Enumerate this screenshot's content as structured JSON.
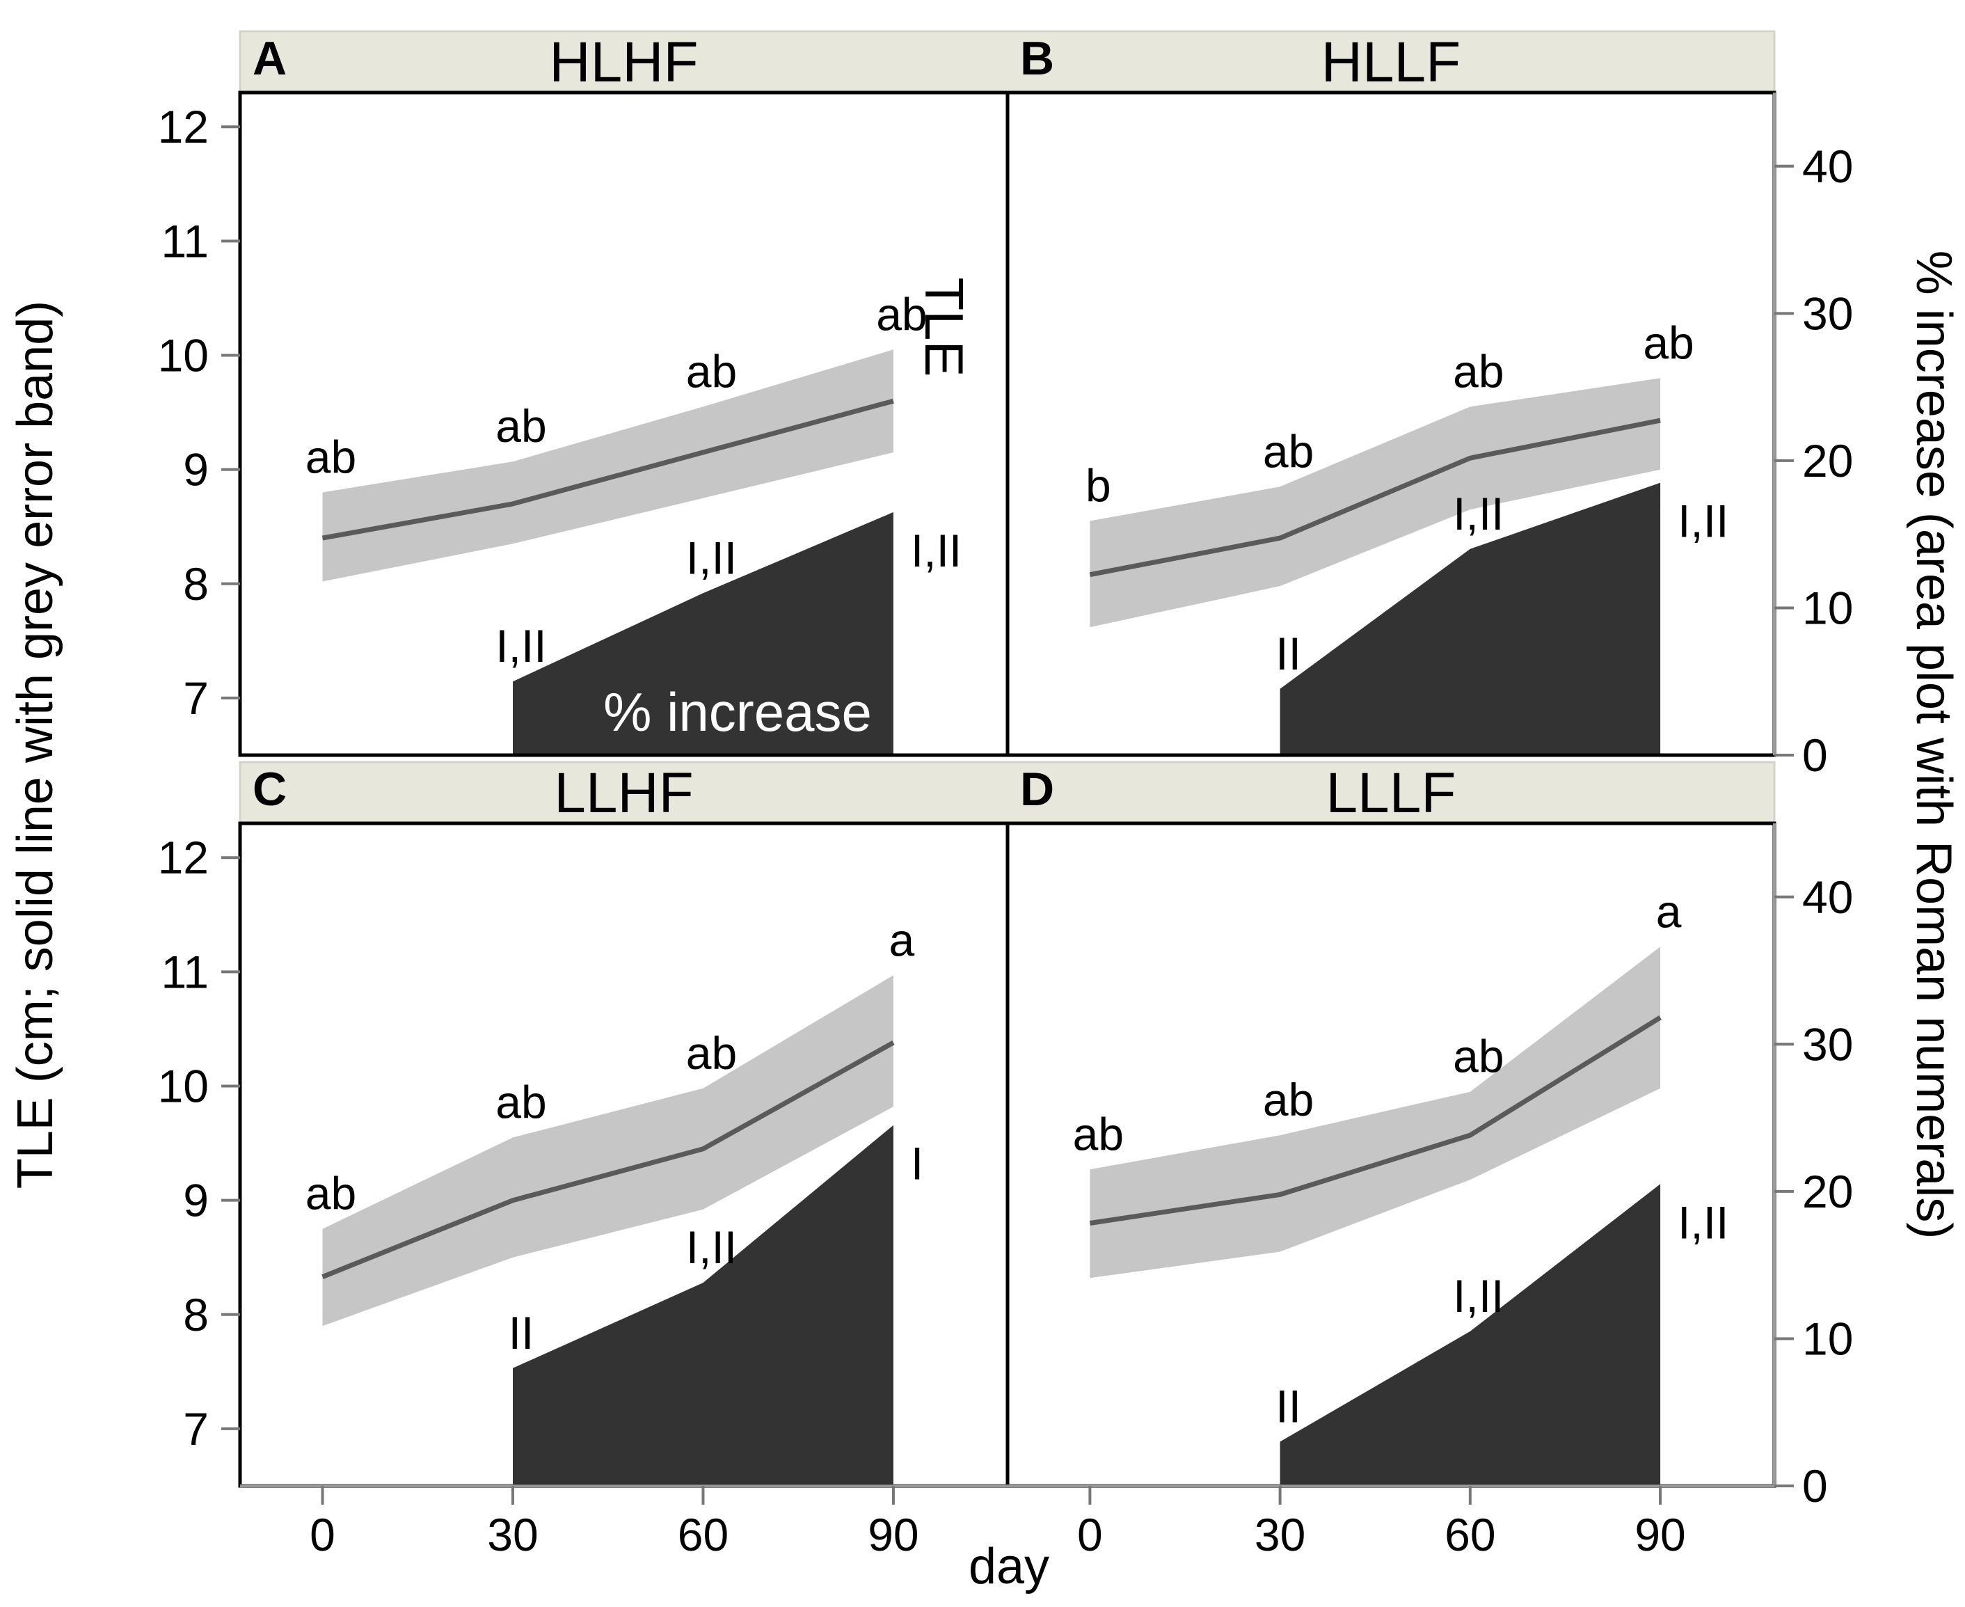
{
  "chart_data": {
    "type": "area",
    "shared": {
      "xlabel": "day",
      "ylabel_left": "TLE (cm; solid line with grey error band)",
      "ylabel_right": "% increase (area plot with Roman numerals)",
      "x_ticks": [
        0,
        30,
        60,
        90
      ],
      "x_tick_labels": [
        "0",
        "30",
        "60",
        "90"
      ],
      "ylim_left": [
        6.5,
        12.3
      ],
      "yticks_left": [
        7,
        8,
        9,
        10,
        11,
        12
      ],
      "ylim_right": [
        0,
        45
      ],
      "yticks_right": [
        0,
        10,
        20,
        30,
        40
      ],
      "xlim": [
        -13,
        108
      ],
      "colors": {
        "band": "#c6c6c6",
        "line": "#5a5a5a",
        "area": "#333333",
        "strip": "#e8e7dc"
      }
    },
    "panels": [
      {
        "letter": "A",
        "title": "HLHF",
        "x": [
          0,
          30,
          60,
          90
        ],
        "tle": [
          8.4,
          8.7,
          9.15,
          9.6
        ],
        "tle_lower": [
          8.02,
          8.35,
          8.75,
          9.15
        ],
        "tle_upper": [
          8.8,
          9.07,
          9.55,
          10.05
        ],
        "tle_letters": [
          "ab",
          "ab",
          "ab",
          "ab"
        ],
        "pct_x": [
          30,
          60,
          90
        ],
        "pct_increase": [
          5,
          11,
          16.5
        ],
        "pct_numerals": [
          "I,II",
          "I,II",
          "I,II"
        ],
        "inline_labels": {
          "line": "TLE",
          "area": "% increase"
        }
      },
      {
        "letter": "B",
        "title": "HLLF",
        "x": [
          0,
          30,
          60,
          90
        ],
        "tle": [
          8.08,
          8.4,
          9.1,
          9.43
        ],
        "tle_lower": [
          7.62,
          7.98,
          8.65,
          9.0
        ],
        "tle_upper": [
          8.55,
          8.85,
          9.55,
          9.8
        ],
        "tle_letters": [
          "b",
          "ab",
          "ab",
          "ab"
        ],
        "pct_x": [
          30,
          60,
          90
        ],
        "pct_increase": [
          4.5,
          14,
          18.5
        ],
        "pct_numerals": [
          "II",
          "I,II",
          "I,II"
        ]
      },
      {
        "letter": "C",
        "title": "LLHF",
        "x": [
          0,
          30,
          60,
          90
        ],
        "tle": [
          8.33,
          9.0,
          9.45,
          10.38
        ],
        "tle_lower": [
          7.9,
          8.5,
          8.92,
          9.82
        ],
        "tle_upper": [
          8.75,
          9.55,
          9.98,
          10.97
        ],
        "tle_letters": [
          "ab",
          "ab",
          "ab",
          "a"
        ],
        "pct_x": [
          30,
          60,
          90
        ],
        "pct_increase": [
          8,
          13.8,
          24.5
        ],
        "pct_numerals": [
          "II",
          "I,II",
          "I"
        ]
      },
      {
        "letter": "D",
        "title": "LLLF",
        "x": [
          0,
          30,
          60,
          90
        ],
        "tle": [
          8.8,
          9.05,
          9.57,
          10.6
        ],
        "tle_lower": [
          8.32,
          8.55,
          9.18,
          9.98
        ],
        "tle_upper": [
          9.27,
          9.57,
          9.95,
          11.22
        ],
        "tle_letters": [
          "ab",
          "ab",
          "ab",
          "a"
        ],
        "pct_x": [
          30,
          60,
          90
        ],
        "pct_increase": [
          3,
          10.5,
          20.5
        ],
        "pct_numerals": [
          "II",
          "I,II",
          "I,II"
        ]
      }
    ]
  }
}
